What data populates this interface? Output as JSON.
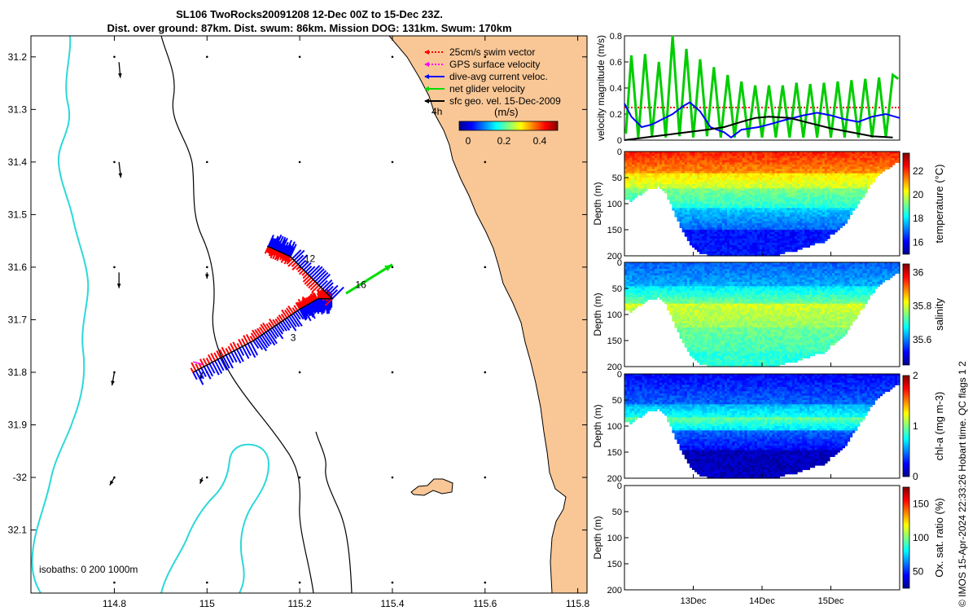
{
  "title_line1": "SL106 TwoRocks20091208 12-Dec 00Z to 15-Dec 23Z.",
  "title_line2": "Dist. over ground: 87km. Dist. swum: 86km. Mission DOG: 131km. Swum: 170km",
  "credit": "© IMOS 15-Apr-2024 22:33:26 Hobart time. QC flags 1  2",
  "chart_data": [
    {
      "type": "scatter",
      "name": "map",
      "xlabel": "",
      "ylabel": "",
      "xlim": [
        114.62,
        115.82
      ],
      "ylim": [
        -32.22,
        -31.16
      ],
      "xticks": [
        114.8,
        115,
        115.2,
        115.4,
        115.6,
        115.8
      ],
      "xtick_labels": [
        "114.8",
        "115",
        "115.2",
        "115.4",
        "115.6",
        "115.8"
      ],
      "yticks": [
        -31.2,
        -31.3,
        -31.4,
        -31.5,
        -31.6,
        -31.7,
        -31.8,
        -31.9,
        -32,
        -32.1
      ],
      "ytick_labels": [
        "31.2",
        "31.3",
        "31.4",
        "31.5",
        "31.6",
        "31.7",
        "31.8",
        "31.9",
        "-32",
        "32.1"
      ],
      "legend": {
        "position": "top-right",
        "entries": [
          {
            "label": "25cm/s swim vector",
            "color": "#ff0000"
          },
          {
            "label": "GPS surface velocity",
            "color": "#ff00ff"
          },
          {
            "label": "dive-avg current veloc.",
            "color": "#0000ff"
          },
          {
            "label": "net glider velocity",
            "color": "#00dd00"
          },
          {
            "label": "sfc geo. vel. 15-Dec-2009",
            "color": "#000000"
          }
        ]
      },
      "colorbar": {
        "title": "(m/s)",
        "ticks": [
          0,
          0.2,
          0.4
        ],
        "tick_labels": [
          "0",
          "0.2",
          "0.4"
        ],
        "range": [
          -0.05,
          0.5
        ]
      },
      "time_label": "4h",
      "isobaths_label": "isobaths: 0   200  1000m",
      "track_labels": [
        {
          "text": "12",
          "lon": 115.21,
          "lat": -31.59
        },
        {
          "text": "16",
          "lon": 115.32,
          "lat": -31.64
        },
        {
          "text": "3",
          "lon": 115.18,
          "lat": -31.74
        }
      ],
      "glider_track": {
        "lon": [
          114.97,
          115.1,
          115.2,
          115.24,
          115.27,
          115.18,
          115.13
        ],
        "lat": [
          -31.8,
          -31.74,
          -31.68,
          -31.66,
          -31.66,
          -31.58,
          -31.56
        ]
      },
      "net_velocity": {
        "lon": [
          115.3,
          115.4
        ],
        "lat": [
          -31.65,
          -31.595
        ]
      },
      "geo_vectors": [
        {
          "lon": 114.81,
          "lat": -31.21,
          "dlon": 0.003,
          "dlat": -0.03
        },
        {
          "lon": 114.81,
          "lat": -31.4,
          "dlon": 0.004,
          "dlat": -0.03
        },
        {
          "lon": 114.81,
          "lat": -31.61,
          "dlon": 0.0,
          "dlat": -0.03
        },
        {
          "lon": 114.8,
          "lat": -31.8,
          "dlon": -0.005,
          "dlat": -0.025
        },
        {
          "lon": 114.8,
          "lat": -32.0,
          "dlon": -0.01,
          "dlat": -0.015
        },
        {
          "lon": 114.99,
          "lat": -32.0,
          "dlon": -0.005,
          "dlat": -0.012
        },
        {
          "lon": 114.99,
          "lat": -31.8,
          "dlon": -0.004,
          "dlat": -0.014
        },
        {
          "lon": 115.0,
          "lat": -31.61,
          "dlon": 0.0,
          "dlat": -0.012
        }
      ]
    },
    {
      "type": "line",
      "name": "velocity",
      "ylabel": "velocity magnitude (m/s)",
      "ylim": [
        0,
        0.8
      ],
      "yticks": [
        0,
        0.2,
        0.4,
        0.6,
        0.8
      ],
      "ytick_labels": [
        "0",
        "0.2",
        "0.4",
        "0.6",
        "0.8"
      ],
      "xlim": [
        0,
        4
      ],
      "series": [
        {
          "color": "#ff0000",
          "style": "dotted",
          "x": [
            0,
            4
          ],
          "y": [
            0.25,
            0.25
          ]
        },
        {
          "color": "#00cc00",
          "x": [
            0.02,
            0.1,
            0.2,
            0.3,
            0.4,
            0.5,
            0.6,
            0.7,
            0.8,
            0.9,
            1.0,
            1.1,
            1.2,
            1.3,
            1.4,
            1.5,
            1.6,
            1.7,
            1.8,
            1.9,
            2.0,
            2.1,
            2.2,
            2.3,
            2.4,
            2.5,
            2.6,
            2.7,
            2.8,
            2.9,
            3.0,
            3.1,
            3.2,
            3.3,
            3.4,
            3.5,
            3.6,
            3.7,
            3.8,
            3.9,
            3.98
          ],
          "y": [
            0.05,
            0.65,
            0.02,
            0.66,
            0.03,
            0.6,
            0.02,
            0.8,
            0.03,
            0.7,
            0.02,
            0.62,
            0.03,
            0.56,
            0.02,
            0.5,
            0.02,
            0.45,
            0.02,
            0.42,
            0.02,
            0.42,
            0.02,
            0.42,
            0.02,
            0.44,
            0.02,
            0.43,
            0.02,
            0.44,
            0.02,
            0.45,
            0.02,
            0.46,
            0.02,
            0.47,
            0.02,
            0.48,
            0.02,
            0.5,
            0.47
          ]
        },
        {
          "color": "#0000ff",
          "x": [
            0,
            0.1,
            0.25,
            0.4,
            0.55,
            0.7,
            0.85,
            0.95,
            1.1,
            1.25,
            1.45,
            1.55,
            1.7,
            1.95,
            2.1,
            2.3,
            2.6,
            2.8,
            3.0,
            3.2,
            3.4,
            3.6,
            3.8,
            4.0
          ],
          "y": [
            0.28,
            0.18,
            0.1,
            0.12,
            0.16,
            0.2,
            0.26,
            0.29,
            0.22,
            0.1,
            0.06,
            0.02,
            0.08,
            0.1,
            0.12,
            0.15,
            0.19,
            0.21,
            0.19,
            0.16,
            0.14,
            0.18,
            0.2,
            0.17
          ]
        },
        {
          "color": "#000000",
          "x": [
            0,
            0.3,
            0.6,
            0.9,
            1.2,
            1.45,
            1.7,
            1.9,
            2.1,
            2.4,
            2.7,
            3.0,
            3.3,
            3.6,
            3.9
          ],
          "y": [
            0.0,
            0.02,
            0.04,
            0.06,
            0.08,
            0.1,
            0.14,
            0.17,
            0.18,
            0.17,
            0.13,
            0.09,
            0.06,
            0.03,
            0.02
          ]
        }
      ]
    },
    {
      "type": "heatmap",
      "name": "temperature",
      "ylabel": "Depth (m)",
      "clabel": "temperature (°C)",
      "ylim": [
        0,
        200
      ],
      "yticks": [
        0,
        50,
        100,
        150,
        200
      ],
      "ytick_labels": [
        "0",
        "50",
        "100",
        "150",
        "200"
      ],
      "clim": [
        15,
        23.5
      ],
      "cticks": [
        16,
        18,
        20,
        22
      ],
      "ctick_labels": [
        "16",
        "18",
        "20",
        "22"
      ],
      "cmap": "jet",
      "colorbar": true,
      "profile_x": [
        0,
        0.1,
        0.2,
        0.3,
        0.4,
        0.5,
        0.6,
        0.7,
        0.8,
        0.9,
        1.0,
        1.1,
        1.2,
        1.3,
        1.4,
        1.5,
        1.6,
        1.7,
        1.8,
        1.9,
        2.0,
        2.1,
        2.2,
        2.3,
        2.4,
        2.5,
        2.6,
        2.7,
        2.8,
        2.9,
        3.0,
        3.1,
        3.2,
        3.3,
        3.4,
        3.5,
        3.6,
        3.7,
        3.8,
        3.9,
        4.0
      ],
      "profile_depth": [
        90,
        95,
        85,
        75,
        70,
        68,
        80,
        110,
        140,
        165,
        185,
        195,
        198,
        200,
        200,
        198,
        200,
        200,
        200,
        200,
        198,
        200,
        200,
        195,
        190,
        190,
        185,
        180,
        175,
        175,
        160,
        150,
        140,
        120,
        100,
        80,
        60,
        45,
        35,
        25,
        20
      ],
      "zones": [
        {
          "depth": [
            0,
            40
          ],
          "value": 22.2
        },
        {
          "depth": [
            40,
            70
          ],
          "value": 20.6
        },
        {
          "depth": [
            70,
            110
          ],
          "value": 19.3
        },
        {
          "depth": [
            110,
            150
          ],
          "value": 17.8
        },
        {
          "depth": [
            150,
            200
          ],
          "value": 16.2
        }
      ]
    },
    {
      "type": "heatmap",
      "name": "salinity",
      "ylabel": "Depth (m)",
      "clabel": "salinity",
      "ylim": [
        0,
        200
      ],
      "yticks": [
        0,
        50,
        100,
        150,
        200
      ],
      "ytick_labels": [
        "0",
        "50",
        "100",
        "150",
        "200"
      ],
      "clim": [
        35.45,
        36.05
      ],
      "cticks": [
        35.6,
        35.8,
        36
      ],
      "ctick_labels": [
        "35.6",
        "35.8",
        "36"
      ],
      "cmap": "jet",
      "colorbar": true,
      "zones": [
        {
          "depth": [
            0,
            45
          ],
          "value": 35.58
        },
        {
          "depth": [
            45,
            80
          ],
          "value": 35.66
        },
        {
          "depth": [
            80,
            125
          ],
          "value": 35.8
        },
        {
          "depth": [
            125,
            170
          ],
          "value": 35.74
        },
        {
          "depth": [
            170,
            200
          ],
          "value": 35.7
        }
      ]
    },
    {
      "type": "heatmap",
      "name": "chl-a",
      "ylabel": "Depth (m)",
      "clabel": "chl-a (mg m-3)",
      "ylim": [
        0,
        200
      ],
      "yticks": [
        0,
        50,
        100,
        150,
        200
      ],
      "ytick_labels": [
        "0",
        "50",
        "100",
        "150",
        "200"
      ],
      "clim": [
        0,
        2
      ],
      "cticks": [
        0,
        1,
        2
      ],
      "ctick_labels": [
        "0",
        "1",
        "2"
      ],
      "cmap": "jet",
      "colorbar": true,
      "zones": [
        {
          "depth": [
            0,
            60
          ],
          "value": 0.25
        },
        {
          "depth": [
            60,
            85
          ],
          "value": 0.6
        },
        {
          "depth": [
            85,
            110
          ],
          "value": 0.95
        },
        {
          "depth": [
            110,
            145
          ],
          "value": 0.45
        },
        {
          "depth": [
            145,
            200
          ],
          "value": 0.12
        }
      ]
    },
    {
      "type": "heatmap",
      "name": "oxygen",
      "ylabel": "Depth (m)",
      "clabel": "Ox. sat. ratio (%)",
      "ylim": [
        0,
        200
      ],
      "yticks": [
        0,
        50,
        100,
        150,
        200
      ],
      "ytick_labels": [
        "0",
        "50",
        "100",
        "150",
        "200"
      ],
      "clim": [
        25,
        175
      ],
      "cticks": [
        50,
        100,
        150
      ],
      "ctick_labels": [
        "50",
        "100",
        "150"
      ],
      "cmap": "jet",
      "colorbar": true,
      "zones": []
    }
  ],
  "time_axis": {
    "ticks": [
      1,
      2,
      3
    ],
    "tick_labels": [
      "13Dec",
      "14Dec",
      "15Dec"
    ]
  }
}
